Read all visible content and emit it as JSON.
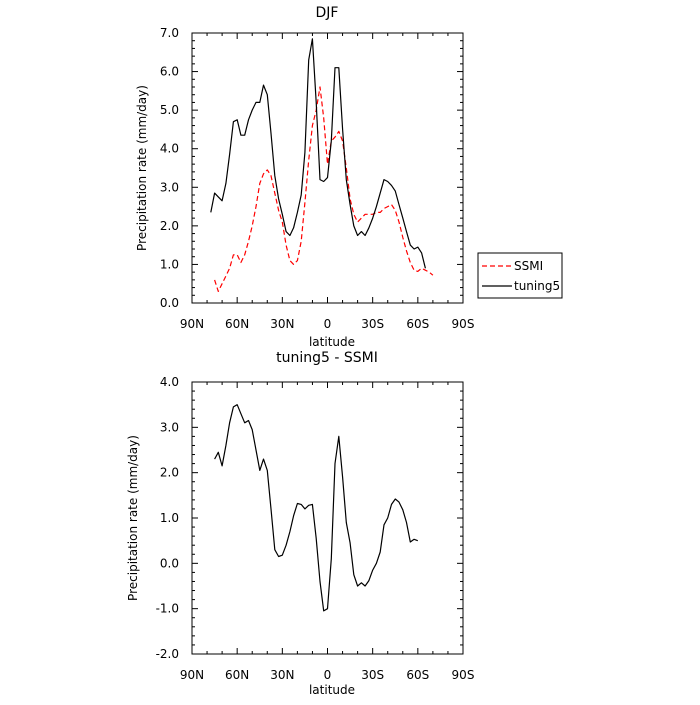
{
  "chart_data": [
    {
      "type": "line",
      "title": "DJF",
      "xlabel": "latitude",
      "ylabel": "Precipitation rate (mm/day)",
      "xlim": [
        90,
        -90
      ],
      "ylim": [
        0,
        7
      ],
      "x_ticks": [
        {
          "v": 90,
          "label": "90N"
        },
        {
          "v": 60,
          "label": "60N"
        },
        {
          "v": 30,
          "label": "30N"
        },
        {
          "v": 0,
          "label": "0"
        },
        {
          "v": -30,
          "label": "30S"
        },
        {
          "v": -60,
          "label": "60S"
        },
        {
          "v": -90,
          "label": "90S"
        }
      ],
      "y_ticks": [
        {
          "v": 0,
          "label": "0.0"
        },
        {
          "v": 1,
          "label": "1.0"
        },
        {
          "v": 2,
          "label": "2.0"
        },
        {
          "v": 3,
          "label": "3.0"
        },
        {
          "v": 4,
          "label": "4.0"
        },
        {
          "v": 5,
          "label": "5.0"
        },
        {
          "v": 6,
          "label": "6.0"
        },
        {
          "v": 7,
          "label": "7.0"
        }
      ],
      "legend_position": "right",
      "series": [
        {
          "name": "SSMI",
          "color": "#ff0000",
          "dash": true,
          "points": [
            [
              75,
              0.6
            ],
            [
              72.5,
              0.3
            ],
            [
              70,
              0.5
            ],
            [
              67.5,
              0.7
            ],
            [
              65,
              0.9
            ],
            [
              62.5,
              1.25
            ],
            [
              60,
              1.25
            ],
            [
              57.5,
              1.05
            ],
            [
              55,
              1.25
            ],
            [
              52.5,
              1.6
            ],
            [
              50,
              2.0
            ],
            [
              47.5,
              2.5
            ],
            [
              45,
              3.1
            ],
            [
              42.5,
              3.35
            ],
            [
              40,
              3.45
            ],
            [
              37.5,
              3.3
            ],
            [
              35,
              2.85
            ],
            [
              32.5,
              2.4
            ],
            [
              30,
              2.1
            ],
            [
              27.5,
              1.5
            ],
            [
              25,
              1.1
            ],
            [
              22.5,
              1.0
            ],
            [
              20,
              1.1
            ],
            [
              17.5,
              1.6
            ],
            [
              15,
              2.6
            ],
            [
              12.5,
              3.7
            ],
            [
              10,
              4.6
            ],
            [
              7.5,
              5.0
            ],
            [
              5,
              5.6
            ],
            [
              2.5,
              4.8
            ],
            [
              0,
              3.6
            ],
            [
              -2.5,
              4.2
            ],
            [
              -5,
              4.3
            ],
            [
              -7.5,
              4.45
            ],
            [
              -10,
              4.2
            ],
            [
              -12.5,
              3.5
            ],
            [
              -15,
              2.7
            ],
            [
              -17.5,
              2.3
            ],
            [
              -20,
              2.1
            ],
            [
              -22.5,
              2.2
            ],
            [
              -25,
              2.3
            ],
            [
              -27.5,
              2.3
            ],
            [
              -30,
              2.3
            ],
            [
              -32.5,
              2.35
            ],
            [
              -35,
              2.35
            ],
            [
              -37.5,
              2.45
            ],
            [
              -40,
              2.5
            ],
            [
              -42.5,
              2.55
            ],
            [
              -45,
              2.4
            ],
            [
              -47.5,
              2.1
            ],
            [
              -50,
              1.7
            ],
            [
              -52.5,
              1.35
            ],
            [
              -55,
              1.05
            ],
            [
              -57.5,
              0.85
            ],
            [
              -60,
              0.82
            ],
            [
              -62.5,
              0.9
            ],
            [
              -65,
              0.85
            ],
            [
              -67.5,
              0.8
            ],
            [
              -70,
              0.72
            ]
          ]
        },
        {
          "name": "tuning5",
          "color": "#000000",
          "dash": false,
          "points": [
            [
              77.5,
              2.35
            ],
            [
              75,
              2.85
            ],
            [
              72.5,
              2.75
            ],
            [
              70,
              2.65
            ],
            [
              67.5,
              3.1
            ],
            [
              65,
              3.85
            ],
            [
              62.5,
              4.7
            ],
            [
              60,
              4.75
            ],
            [
              57.5,
              4.35
            ],
            [
              55,
              4.35
            ],
            [
              52.5,
              4.75
            ],
            [
              50,
              5.0
            ],
            [
              47.5,
              5.2
            ],
            [
              45,
              5.2
            ],
            [
              42.5,
              5.65
            ],
            [
              40,
              5.4
            ],
            [
              37.5,
              4.4
            ],
            [
              35,
              3.3
            ],
            [
              32.5,
              2.7
            ],
            [
              30,
              2.3
            ],
            [
              27.5,
              1.85
            ],
            [
              25,
              1.75
            ],
            [
              22.5,
              1.95
            ],
            [
              20,
              2.35
            ],
            [
              17.5,
              2.8
            ],
            [
              15,
              3.9
            ],
            [
              12.5,
              6.3
            ],
            [
              10,
              6.85
            ],
            [
              7.5,
              5.2
            ],
            [
              5,
              3.2
            ],
            [
              2.5,
              3.15
            ],
            [
              0,
              3.25
            ],
            [
              -2.5,
              4.2
            ],
            [
              -5,
              6.1
            ],
            [
              -7.5,
              6.1
            ],
            [
              -10,
              4.5
            ],
            [
              -12.5,
              3.2
            ],
            [
              -15,
              2.55
            ],
            [
              -17.5,
              2.0
            ],
            [
              -20,
              1.75
            ],
            [
              -22.5,
              1.85
            ],
            [
              -25,
              1.75
            ],
            [
              -27.5,
              1.95
            ],
            [
              -30,
              2.2
            ],
            [
              -32.5,
              2.5
            ],
            [
              -35,
              2.85
            ],
            [
              -37.5,
              3.2
            ],
            [
              -40,
              3.15
            ],
            [
              -42.5,
              3.05
            ],
            [
              -45,
              2.9
            ],
            [
              -47.5,
              2.55
            ],
            [
              -50,
              2.2
            ],
            [
              -52.5,
              1.85
            ],
            [
              -55,
              1.5
            ],
            [
              -57.5,
              1.4
            ],
            [
              -60,
              1.45
            ],
            [
              -62.5,
              1.3
            ],
            [
              -65,
              0.9
            ]
          ]
        }
      ]
    },
    {
      "type": "line",
      "title": "tuning5 - SSMI",
      "xlabel": "latitude",
      "ylabel": "Precipitation rate (mm/day)",
      "xlim": [
        90,
        -90
      ],
      "ylim": [
        -2,
        4
      ],
      "x_ticks": [
        {
          "v": 90,
          "label": "90N"
        },
        {
          "v": 60,
          "label": "60N"
        },
        {
          "v": 30,
          "label": "30N"
        },
        {
          "v": 0,
          "label": "0"
        },
        {
          "v": -30,
          "label": "30S"
        },
        {
          "v": -60,
          "label": "60S"
        },
        {
          "v": -90,
          "label": "90S"
        }
      ],
      "y_ticks": [
        {
          "v": -2,
          "label": "-2.0"
        },
        {
          "v": -1,
          "label": "-1.0"
        },
        {
          "v": 0,
          "label": "0.0"
        },
        {
          "v": 1,
          "label": "1.0"
        },
        {
          "v": 2,
          "label": "2.0"
        },
        {
          "v": 3,
          "label": "3.0"
        },
        {
          "v": 4,
          "label": "4.0"
        }
      ],
      "series": [
        {
          "name": "",
          "color": "#000000",
          "dash": false,
          "points": [
            [
              75,
              2.3
            ],
            [
              72.5,
              2.45
            ],
            [
              70,
              2.15
            ],
            [
              67.5,
              2.6
            ],
            [
              65,
              3.1
            ],
            [
              62.5,
              3.45
            ],
            [
              60,
              3.5
            ],
            [
              57.5,
              3.3
            ],
            [
              55,
              3.1
            ],
            [
              52.5,
              3.15
            ],
            [
              50,
              2.95
            ],
            [
              47.5,
              2.5
            ],
            [
              45,
              2.05
            ],
            [
              42.5,
              2.3
            ],
            [
              40,
              2.05
            ],
            [
              37.5,
              1.2
            ],
            [
              35,
              0.3
            ],
            [
              32.5,
              0.15
            ],
            [
              30,
              0.18
            ],
            [
              27.5,
              0.4
            ],
            [
              25,
              0.7
            ],
            [
              22.5,
              1.05
            ],
            [
              20,
              1.32
            ],
            [
              17.5,
              1.3
            ],
            [
              15,
              1.2
            ],
            [
              12.5,
              1.28
            ],
            [
              10,
              1.3
            ],
            [
              7.5,
              0.55
            ],
            [
              5,
              -0.4
            ],
            [
              2.5,
              -1.05
            ],
            [
              0,
              -1.0
            ],
            [
              -2.5,
              0.1
            ],
            [
              -5,
              2.2
            ],
            [
              -7.5,
              2.8
            ],
            [
              -10,
              1.9
            ],
            [
              -12.5,
              0.9
            ],
            [
              -15,
              0.45
            ],
            [
              -17.5,
              -0.25
            ],
            [
              -20,
              -0.5
            ],
            [
              -22.5,
              -0.43
            ],
            [
              -25,
              -0.5
            ],
            [
              -27.5,
              -0.38
            ],
            [
              -30,
              -0.15
            ],
            [
              -32.5,
              0.0
            ],
            [
              -35,
              0.25
            ],
            [
              -37.5,
              0.85
            ],
            [
              -40,
              1.0
            ],
            [
              -42.5,
              1.3
            ],
            [
              -45,
              1.42
            ],
            [
              -47.5,
              1.35
            ],
            [
              -50,
              1.18
            ],
            [
              -52.5,
              0.9
            ],
            [
              -55,
              0.47
            ],
            [
              -57.5,
              0.53
            ],
            [
              -60,
              0.5
            ]
          ]
        }
      ]
    }
  ]
}
